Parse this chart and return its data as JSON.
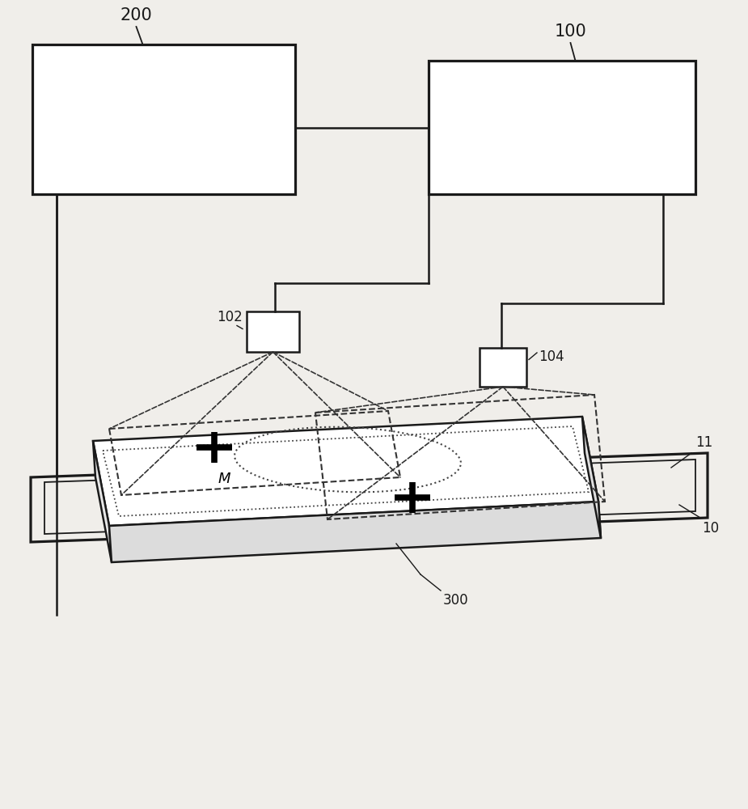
{
  "bg_color": "#f0eeea",
  "lc": "#1a1a1a",
  "label_fs": 15,
  "small_label_fs": 12,
  "lw_thick": 2.3,
  "lw_med": 1.8,
  "lw_thin": 1.3
}
